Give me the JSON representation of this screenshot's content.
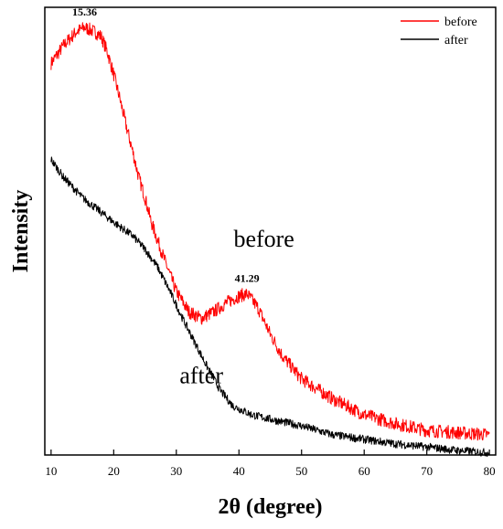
{
  "chart_data": {
    "type": "line",
    "title": "",
    "xlabel": "2θ (degree)",
    "ylabel": "Intensity",
    "xlim": [
      9,
      81
    ],
    "ylim": [
      0,
      100
    ],
    "xticks": [
      10,
      20,
      30,
      40,
      50,
      60,
      70,
      80
    ],
    "y_tick_labels_shown": false,
    "grid": false,
    "legend": "top-right",
    "series": [
      {
        "name": "before",
        "color": "#ff0000",
        "x": [
          10,
          12,
          14,
          15.36,
          17,
          18,
          19,
          20,
          21,
          22,
          23,
          24,
          25,
          26,
          28,
          30,
          32,
          34,
          36,
          38,
          40,
          41.29,
          43,
          45,
          47,
          50,
          55,
          60,
          65,
          70,
          75,
          80
        ],
        "y": [
          87.5,
          91.5,
          94.5,
          95.5,
          94.5,
          93.5,
          90,
          85,
          79.5,
          73.5,
          68,
          62,
          57.5,
          52,
          44,
          36.5,
          32,
          30.5,
          32,
          34,
          35.5,
          36,
          33,
          27,
          22,
          17,
          12.5,
          9,
          7,
          5.5,
          5,
          4.5
        ]
      },
      {
        "name": "after",
        "color": "#000000",
        "x": [
          10,
          12,
          15,
          20,
          23,
          25,
          27,
          29,
          31,
          33,
          35,
          37,
          39,
          42,
          45,
          50,
          55,
          60,
          65,
          70,
          75,
          80
        ],
        "y": [
          66,
          62,
          57.5,
          52,
          49,
          46,
          42,
          36.5,
          30.5,
          25,
          19.5,
          14.5,
          11,
          9,
          8,
          6.5,
          4.5,
          3.5,
          2.5,
          1.8,
          1,
          0.5
        ]
      }
    ],
    "annotations": [
      {
        "text": "15.36",
        "x": 15.36,
        "series": "before"
      },
      {
        "text": "41.29",
        "x": 41.29,
        "series": "before"
      }
    ],
    "series_labels": [
      {
        "text": "before",
        "x": 44,
        "y": 46.5
      },
      {
        "text": "after",
        "x": 34,
        "y": 16
      }
    ]
  }
}
